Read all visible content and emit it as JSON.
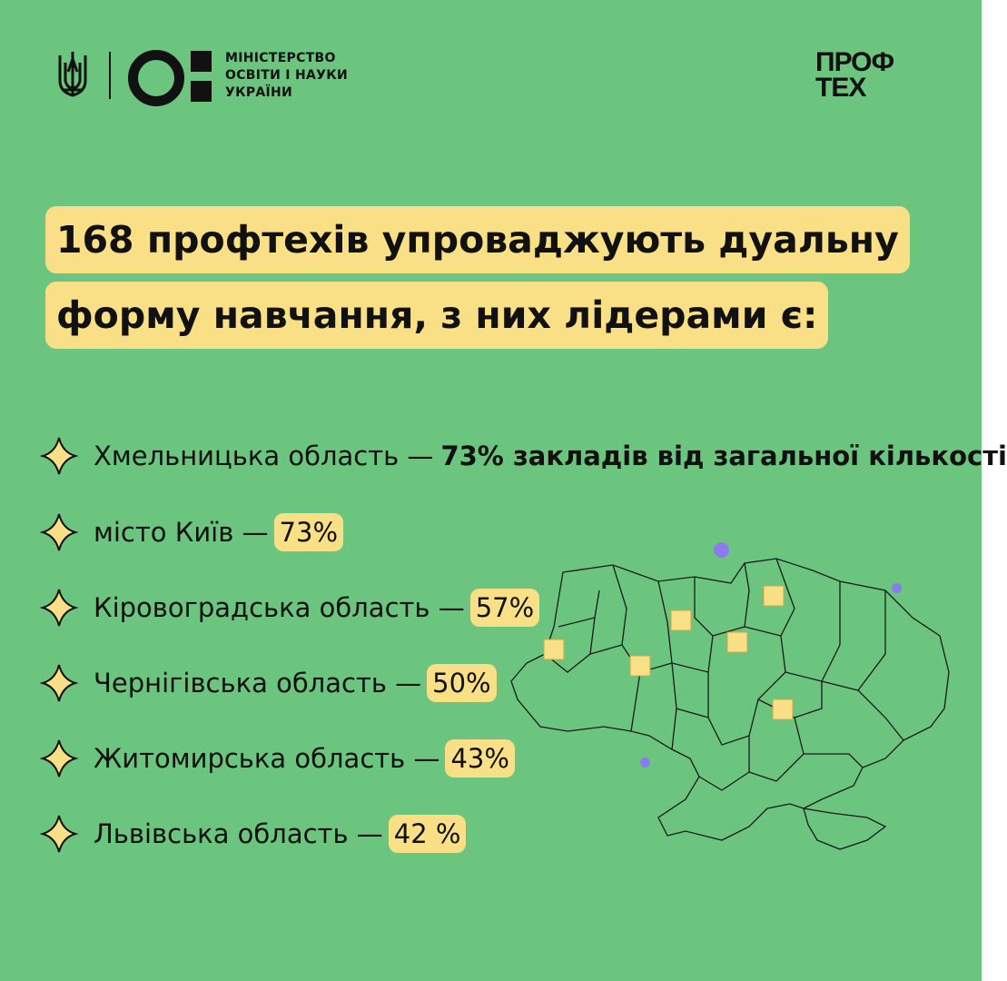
{
  "header": {
    "ministry_lines": [
      "МІНІСТЕРСТВО",
      "ОСВІТИ І НАУКИ",
      "УКРАЇНИ"
    ],
    "brand_lines": [
      "ПРОФ",
      "ТЕХ"
    ]
  },
  "title": {
    "line1": "168 профтехів упроваджують дуальну",
    "line2": "форму навчання, з них лідерами є:"
  },
  "items": [
    {
      "label": "Хмельницька область —",
      "value": "73% закладів від загальної кількості"
    },
    {
      "label": "місто Київ —",
      "value": "73%"
    },
    {
      "label": "Кіровоградська область —",
      "value": "57%"
    },
    {
      "label": "Чернігівська область —",
      "value": "50%"
    },
    {
      "label": "Житомирська область —",
      "value": "43%"
    },
    {
      "label": "Львівська область  —",
      "value": "42 %"
    }
  ],
  "colors": {
    "background": "#6cc57f",
    "highlight": "#f9df86",
    "dot": "#8a7cf0"
  }
}
